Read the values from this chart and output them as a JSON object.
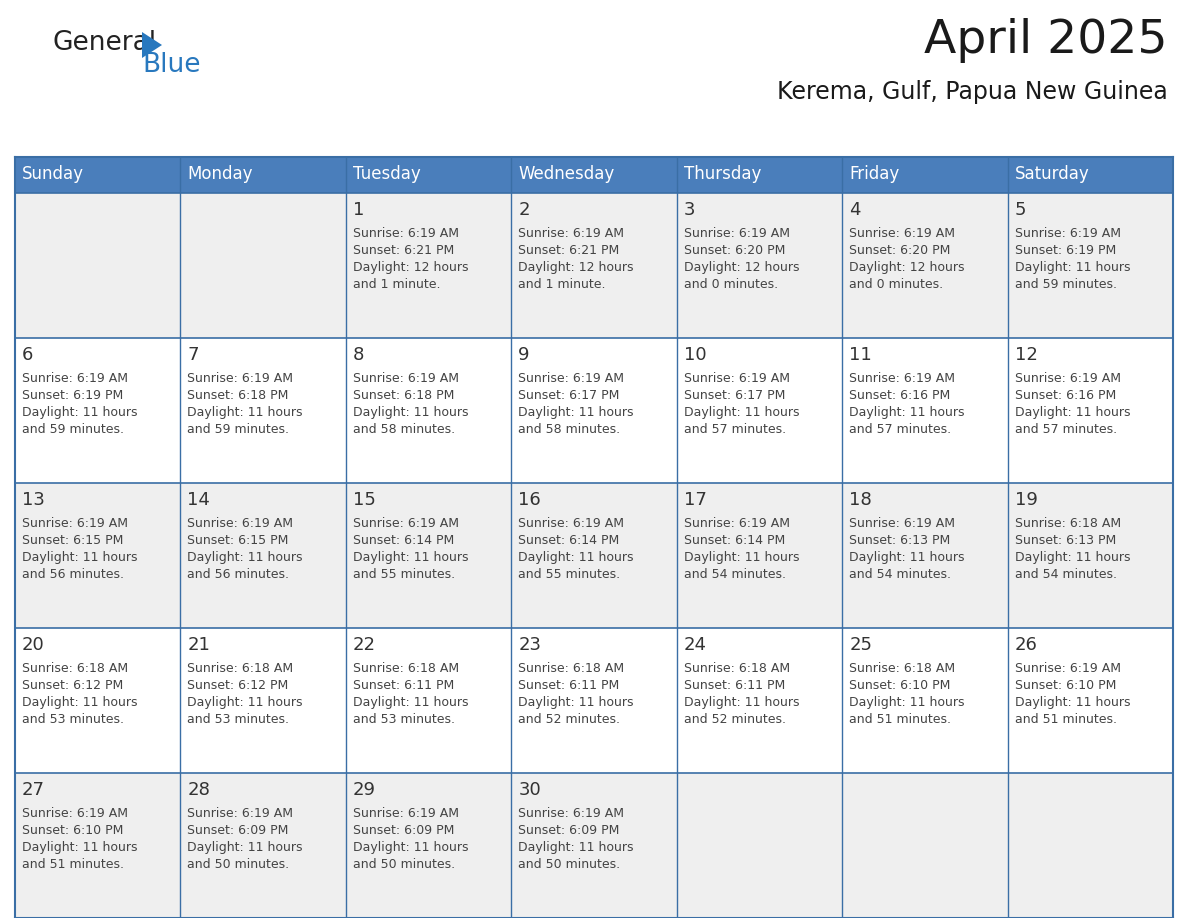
{
  "title": "April 2025",
  "subtitle": "Kerema, Gulf, Papua New Guinea",
  "days_of_week": [
    "Sunday",
    "Monday",
    "Tuesday",
    "Wednesday",
    "Thursday",
    "Friday",
    "Saturday"
  ],
  "header_bg": "#4A7EBB",
  "header_text": "#FFFFFF",
  "border_color": "#3A6EA5",
  "text_color": "#444444",
  "calendar_data": [
    [
      {
        "day": "",
        "sunrise": "",
        "sunset": "",
        "dl1": "",
        "dl2": ""
      },
      {
        "day": "",
        "sunrise": "",
        "sunset": "",
        "dl1": "",
        "dl2": ""
      },
      {
        "day": "1",
        "sunrise": "Sunrise: 6:19 AM",
        "sunset": "Sunset: 6:21 PM",
        "dl1": "Daylight: 12 hours",
        "dl2": "and 1 minute."
      },
      {
        "day": "2",
        "sunrise": "Sunrise: 6:19 AM",
        "sunset": "Sunset: 6:21 PM",
        "dl1": "Daylight: 12 hours",
        "dl2": "and 1 minute."
      },
      {
        "day": "3",
        "sunrise": "Sunrise: 6:19 AM",
        "sunset": "Sunset: 6:20 PM",
        "dl1": "Daylight: 12 hours",
        "dl2": "and 0 minutes."
      },
      {
        "day": "4",
        "sunrise": "Sunrise: 6:19 AM",
        "sunset": "Sunset: 6:20 PM",
        "dl1": "Daylight: 12 hours",
        "dl2": "and 0 minutes."
      },
      {
        "day": "5",
        "sunrise": "Sunrise: 6:19 AM",
        "sunset": "Sunset: 6:19 PM",
        "dl1": "Daylight: 11 hours",
        "dl2": "and 59 minutes."
      }
    ],
    [
      {
        "day": "6",
        "sunrise": "Sunrise: 6:19 AM",
        "sunset": "Sunset: 6:19 PM",
        "dl1": "Daylight: 11 hours",
        "dl2": "and 59 minutes."
      },
      {
        "day": "7",
        "sunrise": "Sunrise: 6:19 AM",
        "sunset": "Sunset: 6:18 PM",
        "dl1": "Daylight: 11 hours",
        "dl2": "and 59 minutes."
      },
      {
        "day": "8",
        "sunrise": "Sunrise: 6:19 AM",
        "sunset": "Sunset: 6:18 PM",
        "dl1": "Daylight: 11 hours",
        "dl2": "and 58 minutes."
      },
      {
        "day": "9",
        "sunrise": "Sunrise: 6:19 AM",
        "sunset": "Sunset: 6:17 PM",
        "dl1": "Daylight: 11 hours",
        "dl2": "and 58 minutes."
      },
      {
        "day": "10",
        "sunrise": "Sunrise: 6:19 AM",
        "sunset": "Sunset: 6:17 PM",
        "dl1": "Daylight: 11 hours",
        "dl2": "and 57 minutes."
      },
      {
        "day": "11",
        "sunrise": "Sunrise: 6:19 AM",
        "sunset": "Sunset: 6:16 PM",
        "dl1": "Daylight: 11 hours",
        "dl2": "and 57 minutes."
      },
      {
        "day": "12",
        "sunrise": "Sunrise: 6:19 AM",
        "sunset": "Sunset: 6:16 PM",
        "dl1": "Daylight: 11 hours",
        "dl2": "and 57 minutes."
      }
    ],
    [
      {
        "day": "13",
        "sunrise": "Sunrise: 6:19 AM",
        "sunset": "Sunset: 6:15 PM",
        "dl1": "Daylight: 11 hours",
        "dl2": "and 56 minutes."
      },
      {
        "day": "14",
        "sunrise": "Sunrise: 6:19 AM",
        "sunset": "Sunset: 6:15 PM",
        "dl1": "Daylight: 11 hours",
        "dl2": "and 56 minutes."
      },
      {
        "day": "15",
        "sunrise": "Sunrise: 6:19 AM",
        "sunset": "Sunset: 6:14 PM",
        "dl1": "Daylight: 11 hours",
        "dl2": "and 55 minutes."
      },
      {
        "day": "16",
        "sunrise": "Sunrise: 6:19 AM",
        "sunset": "Sunset: 6:14 PM",
        "dl1": "Daylight: 11 hours",
        "dl2": "and 55 minutes."
      },
      {
        "day": "17",
        "sunrise": "Sunrise: 6:19 AM",
        "sunset": "Sunset: 6:14 PM",
        "dl1": "Daylight: 11 hours",
        "dl2": "and 54 minutes."
      },
      {
        "day": "18",
        "sunrise": "Sunrise: 6:19 AM",
        "sunset": "Sunset: 6:13 PM",
        "dl1": "Daylight: 11 hours",
        "dl2": "and 54 minutes."
      },
      {
        "day": "19",
        "sunrise": "Sunrise: 6:18 AM",
        "sunset": "Sunset: 6:13 PM",
        "dl1": "Daylight: 11 hours",
        "dl2": "and 54 minutes."
      }
    ],
    [
      {
        "day": "20",
        "sunrise": "Sunrise: 6:18 AM",
        "sunset": "Sunset: 6:12 PM",
        "dl1": "Daylight: 11 hours",
        "dl2": "and 53 minutes."
      },
      {
        "day": "21",
        "sunrise": "Sunrise: 6:18 AM",
        "sunset": "Sunset: 6:12 PM",
        "dl1": "Daylight: 11 hours",
        "dl2": "and 53 minutes."
      },
      {
        "day": "22",
        "sunrise": "Sunrise: 6:18 AM",
        "sunset": "Sunset: 6:11 PM",
        "dl1": "Daylight: 11 hours",
        "dl2": "and 53 minutes."
      },
      {
        "day": "23",
        "sunrise": "Sunrise: 6:18 AM",
        "sunset": "Sunset: 6:11 PM",
        "dl1": "Daylight: 11 hours",
        "dl2": "and 52 minutes."
      },
      {
        "day": "24",
        "sunrise": "Sunrise: 6:18 AM",
        "sunset": "Sunset: 6:11 PM",
        "dl1": "Daylight: 11 hours",
        "dl2": "and 52 minutes."
      },
      {
        "day": "25",
        "sunrise": "Sunrise: 6:18 AM",
        "sunset": "Sunset: 6:10 PM",
        "dl1": "Daylight: 11 hours",
        "dl2": "and 51 minutes."
      },
      {
        "day": "26",
        "sunrise": "Sunrise: 6:19 AM",
        "sunset": "Sunset: 6:10 PM",
        "dl1": "Daylight: 11 hours",
        "dl2": "and 51 minutes."
      }
    ],
    [
      {
        "day": "27",
        "sunrise": "Sunrise: 6:19 AM",
        "sunset": "Sunset: 6:10 PM",
        "dl1": "Daylight: 11 hours",
        "dl2": "and 51 minutes."
      },
      {
        "day": "28",
        "sunrise": "Sunrise: 6:19 AM",
        "sunset": "Sunset: 6:09 PM",
        "dl1": "Daylight: 11 hours",
        "dl2": "and 50 minutes."
      },
      {
        "day": "29",
        "sunrise": "Sunrise: 6:19 AM",
        "sunset": "Sunset: 6:09 PM",
        "dl1": "Daylight: 11 hours",
        "dl2": "and 50 minutes."
      },
      {
        "day": "30",
        "sunrise": "Sunrise: 6:19 AM",
        "sunset": "Sunset: 6:09 PM",
        "dl1": "Daylight: 11 hours",
        "dl2": "and 50 minutes."
      },
      {
        "day": "",
        "sunrise": "",
        "sunset": "",
        "dl1": "",
        "dl2": ""
      },
      {
        "day": "",
        "sunrise": "",
        "sunset": "",
        "dl1": "",
        "dl2": ""
      },
      {
        "day": "",
        "sunrise": "",
        "sunset": "",
        "dl1": "",
        "dl2": ""
      }
    ]
  ],
  "logo_color_general": "#222222",
  "logo_color_blue": "#2878BE",
  "logo_triangle_color": "#2878BE"
}
